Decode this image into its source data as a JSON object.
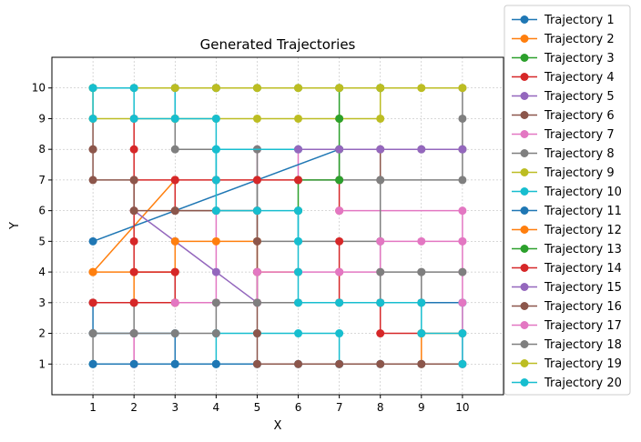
{
  "chart_data": {
    "type": "line",
    "title": "Generated Trajectories",
    "xlabel": "X",
    "ylabel": "Y",
    "xlim": [
      0,
      11
    ],
    "ylim": [
      0,
      11
    ],
    "xticks": [
      1,
      2,
      3,
      4,
      5,
      6,
      7,
      8,
      9,
      10
    ],
    "yticks": [
      1,
      2,
      3,
      4,
      5,
      6,
      7,
      8,
      9,
      10
    ],
    "grid": true,
    "legend_position": "outside-right",
    "series": [
      {
        "name": "Trajectory 1",
        "color": "#1f77b4",
        "points": [
          [
            1,
            5
          ],
          [
            7,
            8
          ]
        ]
      },
      {
        "name": "Trajectory 2",
        "color": "#ff7f0e",
        "points": [
          [
            9,
            1
          ],
          [
            9,
            2
          ],
          [
            10,
            2
          ]
        ]
      },
      {
        "name": "Trajectory 3",
        "color": "#2ca02c",
        "points": [
          [
            4,
            10
          ],
          [
            5,
            10
          ],
          [
            6,
            10
          ],
          [
            7,
            10
          ],
          [
            8,
            10
          ]
        ]
      },
      {
        "name": "Trajectory 4",
        "color": "#d62728",
        "points": [
          [
            7,
            5
          ],
          [
            7,
            4
          ],
          [
            7,
            3
          ]
        ]
      },
      {
        "name": "Trajectory 5",
        "color": "#9467bd",
        "points": [
          [
            2,
            6
          ],
          [
            3,
            5
          ],
          [
            4,
            4
          ],
          [
            5,
            3
          ]
        ]
      },
      {
        "name": "Trajectory 6",
        "color": "#8c564b",
        "points": [
          [
            5,
            4
          ],
          [
            5,
            3
          ]
        ]
      },
      {
        "name": "Trajectory 7",
        "color": "#e377c2",
        "points": [
          [
            2,
            1
          ],
          [
            2,
            2
          ]
        ]
      },
      {
        "name": "Trajectory 8",
        "color": "#7f7f7f",
        "points": [
          [
            2,
            2
          ],
          [
            2,
            3
          ]
        ]
      },
      {
        "name": "Trajectory 9",
        "color": "#bcbd22",
        "points": [
          [
            3,
            9
          ],
          [
            4,
            9
          ],
          [
            5,
            9
          ],
          [
            6,
            9
          ],
          [
            7,
            9
          ]
        ]
      },
      {
        "name": "Trajectory 10",
        "color": "#17becf",
        "points": [
          [
            4,
            2
          ],
          [
            5,
            2
          ],
          [
            6,
            2
          ],
          [
            7,
            2
          ],
          [
            7,
            1
          ]
        ]
      },
      {
        "name": "Trajectory 11",
        "color": "#1f77b4",
        "points": [
          [
            1,
            1
          ],
          [
            2,
            1
          ],
          [
            3,
            1
          ],
          [
            4,
            1
          ],
          [
            5,
            1
          ],
          [
            6,
            1
          ],
          [
            7,
            1
          ],
          [
            8,
            1
          ],
          [
            9,
            1
          ],
          [
            10,
            1
          ]
        ]
      },
      {
        "name": "Trajectory 12",
        "color": "#ff7f0e",
        "points": [
          [
            1,
            4
          ],
          [
            2,
            4
          ],
          [
            3,
            4
          ],
          [
            3,
            5
          ],
          [
            4,
            5
          ],
          [
            5,
            5
          ],
          [
            5,
            4
          ],
          [
            6,
            4
          ]
        ]
      },
      {
        "name": "Trajectory 13",
        "color": "#2ca02c",
        "points": [
          [
            6,
            6
          ],
          [
            6,
            7
          ],
          [
            7,
            7
          ],
          [
            7,
            8
          ],
          [
            7,
            9
          ],
          [
            7,
            10
          ],
          [
            8,
            10
          ]
        ]
      },
      {
        "name": "Trajectory 14",
        "color": "#d62728",
        "points": [
          [
            1,
            3
          ],
          [
            2,
            3
          ],
          [
            3,
            3
          ],
          [
            3,
            4
          ],
          [
            2,
            4
          ],
          [
            2,
            5
          ],
          [
            2,
            6
          ],
          [
            2,
            7
          ],
          [
            3,
            7
          ],
          [
            4,
            7
          ],
          [
            5,
            7
          ],
          [
            6,
            7
          ]
        ]
      },
      {
        "name": "Trajectory 15",
        "color": "#9467bd",
        "points": [
          [
            6,
            8
          ],
          [
            7,
            8
          ],
          [
            8,
            8
          ],
          [
            9,
            8
          ],
          [
            10,
            8
          ]
        ]
      },
      {
        "name": "Trajectory 16",
        "color": "#8c564b",
        "points": [
          [
            1,
            8
          ],
          [
            1,
            7
          ],
          [
            2,
            7
          ],
          [
            2,
            6
          ],
          [
            3,
            6
          ],
          [
            4,
            6
          ],
          [
            5,
            6
          ],
          [
            5,
            5
          ],
          [
            5,
            4
          ],
          [
            5,
            3
          ],
          [
            5,
            2
          ],
          [
            5,
            1
          ],
          [
            6,
            1
          ],
          [
            7,
            1
          ],
          [
            8,
            1
          ],
          [
            9,
            1
          ],
          [
            10,
            1
          ]
        ]
      },
      {
        "name": "Trajectory 17",
        "color": "#e377c2",
        "points": [
          [
            3,
            3
          ],
          [
            4,
            3
          ],
          [
            5,
            3
          ],
          [
            5,
            4
          ],
          [
            6,
            4
          ],
          [
            7,
            4
          ],
          [
            8,
            4
          ],
          [
            8,
            5
          ],
          [
            9,
            5
          ],
          [
            10,
            5
          ],
          [
            10,
            4
          ],
          [
            10,
            3
          ],
          [
            10,
            2
          ],
          [
            10,
            1
          ]
        ]
      },
      {
        "name": "Trajectory 18",
        "color": "#7f7f7f",
        "points": [
          [
            1,
            2
          ],
          [
            2,
            2
          ],
          [
            3,
            2
          ],
          [
            4,
            2
          ],
          [
            4,
            3
          ],
          [
            5,
            3
          ],
          [
            6,
            3
          ],
          [
            7,
            3
          ],
          [
            8,
            3
          ],
          [
            8,
            4
          ],
          [
            9,
            4
          ],
          [
            10,
            4
          ]
        ]
      },
      {
        "name": "Trajectory 19",
        "color": "#bcbd22",
        "points": [
          [
            1,
            10
          ],
          [
            2,
            10
          ],
          [
            3,
            10
          ],
          [
            4,
            10
          ],
          [
            5,
            10
          ],
          [
            6,
            10
          ],
          [
            7,
            10
          ],
          [
            8,
            10
          ],
          [
            9,
            10
          ],
          [
            10,
            10
          ]
        ]
      },
      {
        "name": "Trajectory 20",
        "color": "#17becf",
        "points": [
          [
            1,
            10
          ],
          [
            2,
            10
          ],
          [
            2,
            9
          ],
          [
            3,
            9
          ],
          [
            4,
            9
          ],
          [
            4,
            8
          ],
          [
            4,
            7
          ],
          [
            4,
            6
          ],
          [
            5,
            6
          ],
          [
            6,
            6
          ],
          [
            6,
            5
          ],
          [
            6,
            4
          ],
          [
            6,
            3
          ],
          [
            7,
            3
          ],
          [
            8,
            3
          ],
          [
            9,
            3
          ],
          [
            9,
            2
          ],
          [
            10,
            2
          ],
          [
            10,
            1
          ]
        ]
      }
    ],
    "background_paths": [
      {
        "color": "#1f77b4",
        "points": [
          [
            1,
            2
          ],
          [
            2,
            2
          ],
          [
            3,
            2
          ],
          [
            3,
            1
          ],
          [
            4,
            1
          ]
        ]
      },
      {
        "color": "#1f77b4",
        "points": [
          [
            1,
            3
          ],
          [
            1,
            2
          ]
        ]
      },
      {
        "color": "#1f77b4",
        "points": [
          [
            1,
            10
          ],
          [
            3,
            10
          ],
          [
            3,
            9
          ]
        ]
      },
      {
        "color": "#1f77b4",
        "points": [
          [
            8,
            3
          ],
          [
            9,
            3
          ],
          [
            10,
            3
          ]
        ]
      },
      {
        "color": "#ff7f0e",
        "points": [
          [
            1,
            4
          ],
          [
            1,
            4
          ],
          [
            3,
            7
          ]
        ]
      },
      {
        "color": "#ff7f0e",
        "points": [
          [
            2,
            4
          ],
          [
            2,
            3
          ]
        ]
      },
      {
        "color": "#d62728",
        "points": [
          [
            1,
            3
          ],
          [
            3,
            3
          ]
        ]
      },
      {
        "color": "#d62728",
        "points": [
          [
            2,
            9
          ],
          [
            2,
            8
          ],
          [
            2,
            7
          ]
        ]
      },
      {
        "color": "#d62728",
        "points": [
          [
            3,
            7
          ],
          [
            3,
            6
          ]
        ]
      },
      {
        "color": "#d62728",
        "points": [
          [
            7,
            7
          ],
          [
            7,
            6
          ]
        ]
      },
      {
        "color": "#d62728",
        "points": [
          [
            8,
            3
          ],
          [
            8,
            2
          ],
          [
            9,
            2
          ]
        ]
      },
      {
        "color": "#8c564b",
        "points": [
          [
            1,
            9
          ],
          [
            1,
            8
          ]
        ]
      },
      {
        "color": "#8c564b",
        "points": [
          [
            3,
            4
          ],
          [
            3,
            3
          ]
        ]
      },
      {
        "color": "#8c564b",
        "points": [
          [
            8,
            8
          ],
          [
            8,
            7
          ]
        ]
      },
      {
        "color": "#e377c2",
        "points": [
          [
            2,
            2
          ],
          [
            2,
            1
          ]
        ]
      },
      {
        "color": "#e377c2",
        "points": [
          [
            4,
            6
          ],
          [
            4,
            3
          ]
        ]
      },
      {
        "color": "#e377c2",
        "points": [
          [
            6,
            8
          ],
          [
            6,
            7
          ],
          [
            7,
            7
          ]
        ]
      },
      {
        "color": "#e377c2",
        "points": [
          [
            7,
            6
          ],
          [
            10,
            6
          ],
          [
            10,
            5
          ]
        ]
      },
      {
        "color": "#e377c2",
        "points": [
          [
            5,
            8
          ],
          [
            5,
            7
          ]
        ]
      },
      {
        "color": "#e377c2",
        "points": [
          [
            3,
            10
          ],
          [
            4,
            10
          ]
        ]
      },
      {
        "color": "#7f7f7f",
        "points": [
          [
            3,
            9
          ],
          [
            3,
            8
          ],
          [
            5,
            8
          ],
          [
            5,
            5
          ],
          [
            8,
            5
          ],
          [
            8,
            3
          ]
        ]
      },
      {
        "color": "#7f7f7f",
        "points": [
          [
            3,
            6
          ],
          [
            5,
            6
          ]
        ]
      },
      {
        "color": "#7f7f7f",
        "points": [
          [
            5,
            7
          ],
          [
            5,
            6
          ]
        ]
      },
      {
        "color": "#7f7f7f",
        "points": [
          [
            7,
            8
          ],
          [
            7,
            7
          ],
          [
            10,
            7
          ],
          [
            10,
            8
          ],
          [
            10,
            9
          ],
          [
            10,
            10
          ]
        ]
      },
      {
        "color": "#7f7f7f",
        "points": [
          [
            9,
            4
          ],
          [
            9,
            3
          ]
        ]
      },
      {
        "color": "#7f7f7f",
        "points": [
          [
            8,
            7
          ],
          [
            8,
            5
          ]
        ]
      },
      {
        "color": "#7f7f7f",
        "points": [
          [
            10,
            8
          ],
          [
            9,
            8
          ]
        ]
      },
      {
        "color": "#7f7f7f",
        "points": [
          [
            1,
            2
          ],
          [
            1,
            1
          ]
        ]
      },
      {
        "color": "#bcbd22",
        "points": [
          [
            1,
            10
          ],
          [
            1,
            9
          ],
          [
            3,
            9
          ]
        ]
      },
      {
        "color": "#bcbd22",
        "points": [
          [
            7,
            9
          ],
          [
            8,
            9
          ],
          [
            8,
            10
          ]
        ]
      },
      {
        "color": "#17becf",
        "points": [
          [
            1,
            10
          ],
          [
            1,
            9
          ]
        ]
      },
      {
        "color": "#17becf",
        "points": [
          [
            1,
            1
          ],
          [
            3,
            1
          ]
        ]
      },
      {
        "color": "#17becf",
        "points": [
          [
            4,
            8
          ],
          [
            6,
            8
          ]
        ]
      },
      {
        "color": "#17becf",
        "points": [
          [
            3,
            9
          ],
          [
            3,
            10
          ]
        ]
      },
      {
        "color": "#17becf",
        "points": [
          [
            2,
            10
          ],
          [
            4,
            10
          ]
        ]
      },
      {
        "color": "#17becf",
        "points": [
          [
            4,
            7
          ],
          [
            4,
            8
          ]
        ]
      },
      {
        "color": "#17becf",
        "points": [
          [
            4,
            2
          ],
          [
            4,
            1
          ]
        ]
      },
      {
        "color": "#17becf",
        "points": [
          [
            10,
            2
          ],
          [
            10,
            3
          ]
        ]
      },
      {
        "color": "#17becf",
        "points": [
          [
            6,
            5
          ],
          [
            6,
            6
          ]
        ]
      }
    ]
  }
}
